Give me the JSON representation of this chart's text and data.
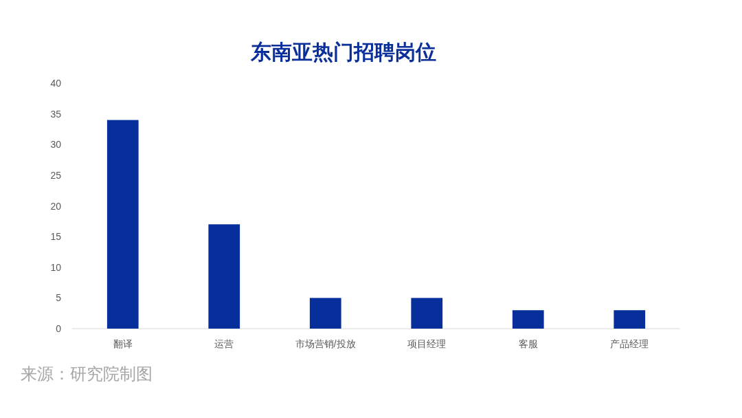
{
  "chart_data": {
    "type": "bar",
    "title": "东南亚热门招聘岗位",
    "categories": [
      "翻译",
      "运营",
      "市场营销/投放",
      "项目经理",
      "客服",
      "产品经理"
    ],
    "values": [
      34,
      17,
      5,
      5,
      3,
      3
    ],
    "color": "#062f9c",
    "ylim": [
      0,
      40
    ],
    "yticks": [
      0,
      5,
      10,
      15,
      20,
      25,
      30,
      35,
      40
    ],
    "annotations": [
      "来源：研究院制图"
    ]
  }
}
